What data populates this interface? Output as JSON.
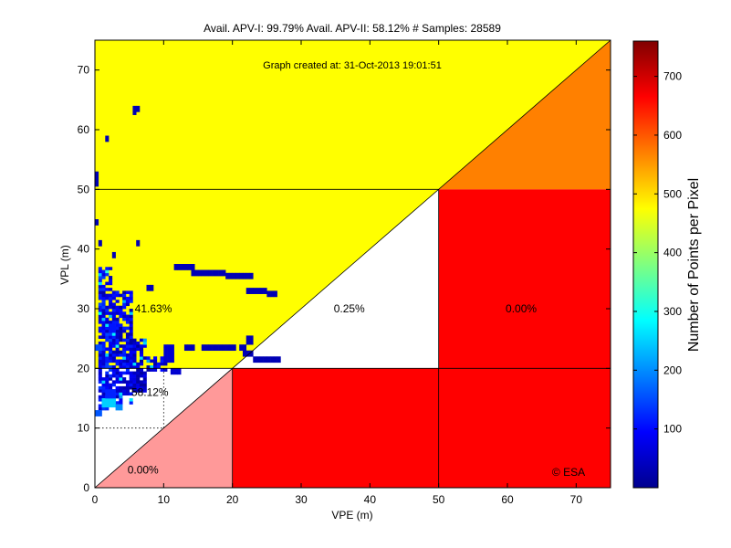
{
  "chart_data": {
    "type": "heatmap",
    "title": "Avail. APV-I: 99.79%  Avail. APV-II: 58.12%  # Samples: 28589",
    "subtitle": "Graph created at: 31-Oct-2013 19:01:51",
    "xlabel": "VPE (m)",
    "ylabel": "VPL (m)",
    "xlim": [
      0,
      75
    ],
    "ylim": [
      0,
      75
    ],
    "xticks": [
      0,
      10,
      20,
      30,
      40,
      50,
      60,
      70
    ],
    "yticks": [
      0,
      10,
      20,
      30,
      40,
      50,
      60,
      70
    ],
    "watermark": "© ESA",
    "colorbar": {
      "label": "Number of Points per Pixel",
      "min": 0,
      "max": 760,
      "ticks": [
        100,
        200,
        300,
        400,
        500,
        600,
        700
      ],
      "colormap": "jet"
    },
    "regions": [
      {
        "polygon": [
          [
            0,
            20
          ],
          [
            0,
            75
          ],
          [
            75,
            75
          ],
          [
            20,
            20
          ]
        ],
        "color": "#ffff00"
      },
      {
        "polygon": [
          [
            20,
            20
          ],
          [
            75,
            75
          ],
          [
            75,
            50
          ],
          [
            50,
            50
          ]
        ],
        "color": "#ff8000"
      },
      {
        "polygon": [
          [
            50,
            20
          ],
          [
            50,
            50
          ],
          [
            75,
            50
          ],
          [
            75,
            20
          ]
        ],
        "color": "#ff0000"
      },
      {
        "polygon": [
          [
            20,
            0
          ],
          [
            20,
            20
          ],
          [
            50,
            20
          ],
          [
            50,
            0
          ]
        ],
        "color": "#ff0000"
      },
      {
        "polygon": [
          [
            50,
            0
          ],
          [
            50,
            20
          ],
          [
            75,
            20
          ],
          [
            75,
            0
          ]
        ],
        "color": "#ff0000"
      },
      {
        "polygon": [
          [
            0,
            0
          ],
          [
            20,
            20
          ],
          [
            20,
            0
          ]
        ],
        "color": "#ff9999"
      }
    ],
    "region_labels": [
      {
        "text": "41.63%",
        "x": 8.5,
        "y": 30
      },
      {
        "text": "0.25%",
        "x": 37,
        "y": 30
      },
      {
        "text": "0.00%",
        "x": 62,
        "y": 30
      },
      {
        "text": "58.12%",
        "x": 8,
        "y": 16
      },
      {
        "text": "0.00%",
        "x": 7,
        "y": 3
      }
    ],
    "region_boundaries": [
      {
        "from": [
          0,
          50
        ],
        "to": [
          50,
          50
        ]
      },
      {
        "from": [
          0,
          20
        ],
        "to": [
          75,
          20
        ]
      },
      {
        "from": [
          20,
          0
        ],
        "to": [
          20,
          20
        ]
      },
      {
        "from": [
          50,
          0
        ],
        "to": [
          50,
          50
        ]
      },
      {
        "from": [
          0,
          0
        ],
        "to": [
          75,
          75
        ]
      }
    ],
    "dotted_lines": [
      {
        "from": [
          0,
          10
        ],
        "to": [
          10,
          10
        ]
      },
      {
        "from": [
          10,
          10
        ],
        "to": [
          10,
          20
        ]
      }
    ],
    "cell_size": [
      0.5,
      0.5
    ],
    "density_blocks": [
      {
        "x0": 0.5,
        "x1": 2.5,
        "y0": 13,
        "y1": 37,
        "value": 90
      },
      {
        "x0": 2.5,
        "x1": 5.5,
        "y0": 14,
        "y1": 33,
        "value": 75
      },
      {
        "x0": 5.5,
        "x1": 7.5,
        "y0": 16,
        "y1": 25,
        "value": 55
      },
      {
        "x0": 0,
        "x1": 1,
        "y0": 12,
        "y1": 13,
        "value": 160
      },
      {
        "x0": 1,
        "x1": 3,
        "y0": 13.5,
        "y1": 15,
        "value": 250
      },
      {
        "x0": 1.5,
        "x1": 3,
        "y0": 15,
        "y1": 16.5,
        "value": 120
      },
      {
        "x0": 3,
        "x1": 4,
        "y0": 13,
        "y1": 14,
        "value": 200
      },
      {
        "x0": 0,
        "x1": 1,
        "y0": 23,
        "y1": 24,
        "value": 150
      },
      {
        "x0": 2,
        "x1": 3,
        "y0": 26,
        "y1": 27.5,
        "value": 110
      },
      {
        "x0": 7.5,
        "x1": 10.5,
        "y0": 19.5,
        "y1": 22,
        "value": 70
      },
      {
        "x0": 10,
        "x1": 11.5,
        "y0": 21,
        "y1": 24,
        "value": 60
      },
      {
        "x0": 11,
        "x1": 12.5,
        "y0": 19,
        "y1": 20,
        "value": 60
      },
      {
        "x0": 11.5,
        "x1": 14.5,
        "y0": 36.5,
        "y1": 37.5,
        "value": 40
      },
      {
        "x0": 14,
        "x1": 19,
        "y0": 35.5,
        "y1": 36.5,
        "value": 40
      },
      {
        "x0": 19,
        "x1": 23,
        "y0": 35,
        "y1": 36,
        "value": 40
      },
      {
        "x0": 22,
        "x1": 25,
        "y0": 32.5,
        "y1": 33.5,
        "value": 40
      },
      {
        "x0": 25,
        "x1": 26.5,
        "y0": 32,
        "y1": 33,
        "value": 40
      },
      {
        "x0": 7.5,
        "x1": 8.5,
        "y0": 33,
        "y1": 34,
        "value": 40
      },
      {
        "x0": 23,
        "x1": 27,
        "y0": 21,
        "y1": 22,
        "value": 40
      },
      {
        "x0": 21.5,
        "x1": 23,
        "y0": 22,
        "y1": 23,
        "value": 40
      },
      {
        "x0": 21,
        "x1": 22,
        "y0": 23,
        "y1": 24,
        "value": 40
      },
      {
        "x0": 22,
        "x1": 23,
        "y0": 24,
        "y1": 25.5,
        "value": 40
      },
      {
        "x0": 15.5,
        "x1": 20.5,
        "y0": 23,
        "y1": 24,
        "value": 40
      },
      {
        "x0": 13,
        "x1": 14.5,
        "y0": 23,
        "y1": 24,
        "value": 40
      },
      {
        "x0": 5.5,
        "x1": 6.5,
        "y0": 63,
        "y1": 64,
        "value": 40
      },
      {
        "x0": 5.5,
        "x1": 6,
        "y0": 62.5,
        "y1": 63,
        "value": 40
      },
      {
        "x0": 1.5,
        "x1": 2,
        "y0": 58,
        "y1": 59,
        "value": 40
      },
      {
        "x0": 0,
        "x1": 0.5,
        "y0": 50.5,
        "y1": 53,
        "value": 40
      },
      {
        "x0": 0,
        "x1": 0.5,
        "y0": 44,
        "y1": 45,
        "value": 40
      },
      {
        "x0": 0.5,
        "x1": 1,
        "y0": 40.5,
        "y1": 41.5,
        "value": 40
      },
      {
        "x0": 6,
        "x1": 6.5,
        "y0": 40.5,
        "y1": 41.5,
        "value": 40
      },
      {
        "x0": 2.5,
        "x1": 3,
        "y0": 38.5,
        "y1": 39.5,
        "value": 40
      }
    ]
  }
}
